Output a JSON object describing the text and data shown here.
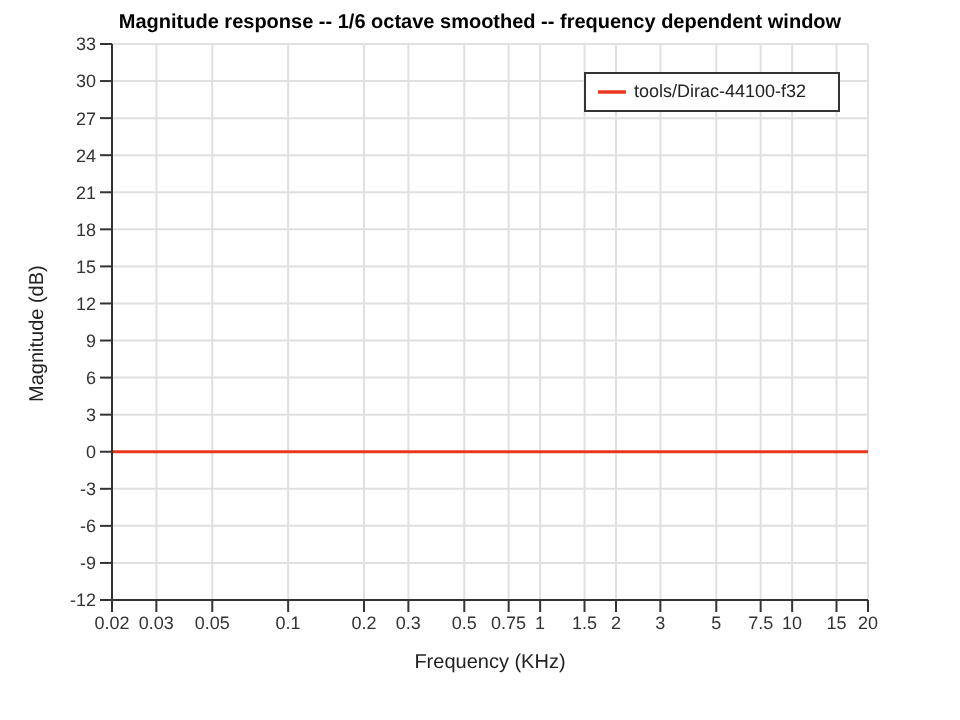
{
  "chart_data": {
    "type": "line",
    "title": "Magnitude response -- 1/6 octave smoothed -- frequency dependent window",
    "xlabel": "Frequency (KHz)",
    "ylabel": "Magnitude (dB)",
    "x": [
      0.02,
      20
    ],
    "series": [
      {
        "name": "tools/Dirac-44100-f32",
        "color": "#e8391e",
        "values": [
          0,
          0
        ]
      }
    ],
    "log": "x",
    "xlim": [
      0.02,
      20
    ],
    "xticks": [
      0.02,
      0.03,
      0.05,
      0.1,
      0.2,
      0.3,
      0.5,
      0.75,
      1,
      1.5,
      2,
      3,
      5,
      7.5,
      10,
      15,
      20
    ],
    "ylim": [
      -12,
      33
    ],
    "yticks": [
      -12,
      -9,
      -6,
      -3,
      0,
      3,
      6,
      9,
      12,
      15,
      18,
      21,
      24,
      27,
      30,
      33
    ],
    "grid": true,
    "legend": "top right",
    "marker": "none",
    "line_style": "solid"
  }
}
